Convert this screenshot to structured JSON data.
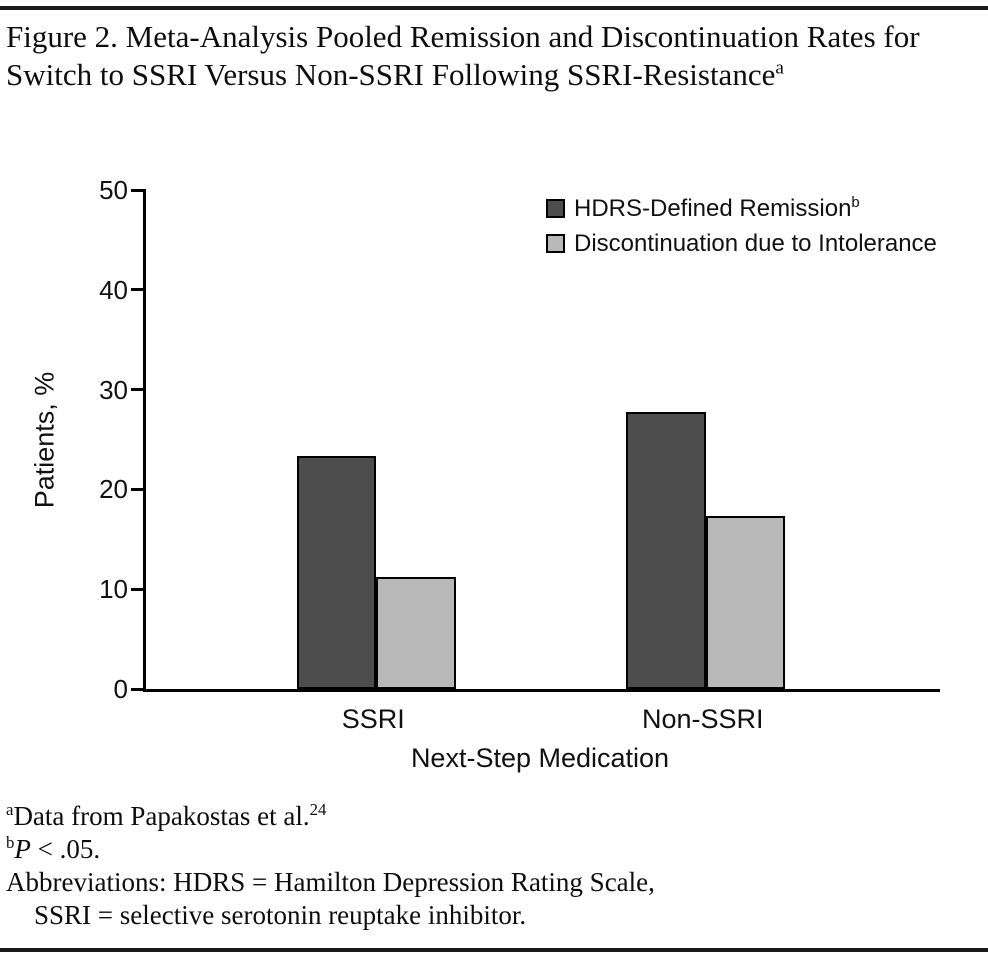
{
  "figure_title": {
    "text": "Figure 2. Meta-Analysis Pooled Remission and Discontinuation Rates for Switch to SSRI Versus Non-SSRI Following SSRI-Resistance",
    "superscript": "a"
  },
  "chart_data": {
    "type": "bar",
    "categories": [
      "SSRI",
      "Non-SSRI"
    ],
    "series": [
      {
        "name": "HDRS-Defined Remission",
        "superscript": "b",
        "color": "#4d4d4d",
        "values": [
          23.3,
          27.8
        ]
      },
      {
        "name": "Discontinuation due to Intolerance",
        "superscript": "",
        "color": "#b9b9b9",
        "values": [
          11.2,
          17.3
        ]
      }
    ],
    "xlabel": "Next-Step Medication",
    "ylabel": "Patients, %",
    "ylim": [
      0,
      50
    ],
    "yticks": [
      0,
      10,
      20,
      30,
      40,
      50
    ],
    "grid": false,
    "legend_position": "top-right"
  },
  "footnotes": {
    "a_marker": "a",
    "a_text": "Data from Papakostas et al.",
    "a_ref": "24",
    "b_marker": "b",
    "b_var": "P",
    "b_text": " < .05.",
    "abbr_line1": "Abbreviations: HDRS = Hamilton Depression Rating Scale,",
    "abbr_line2": "SSRI = selective serotonin reuptake inhibitor."
  }
}
